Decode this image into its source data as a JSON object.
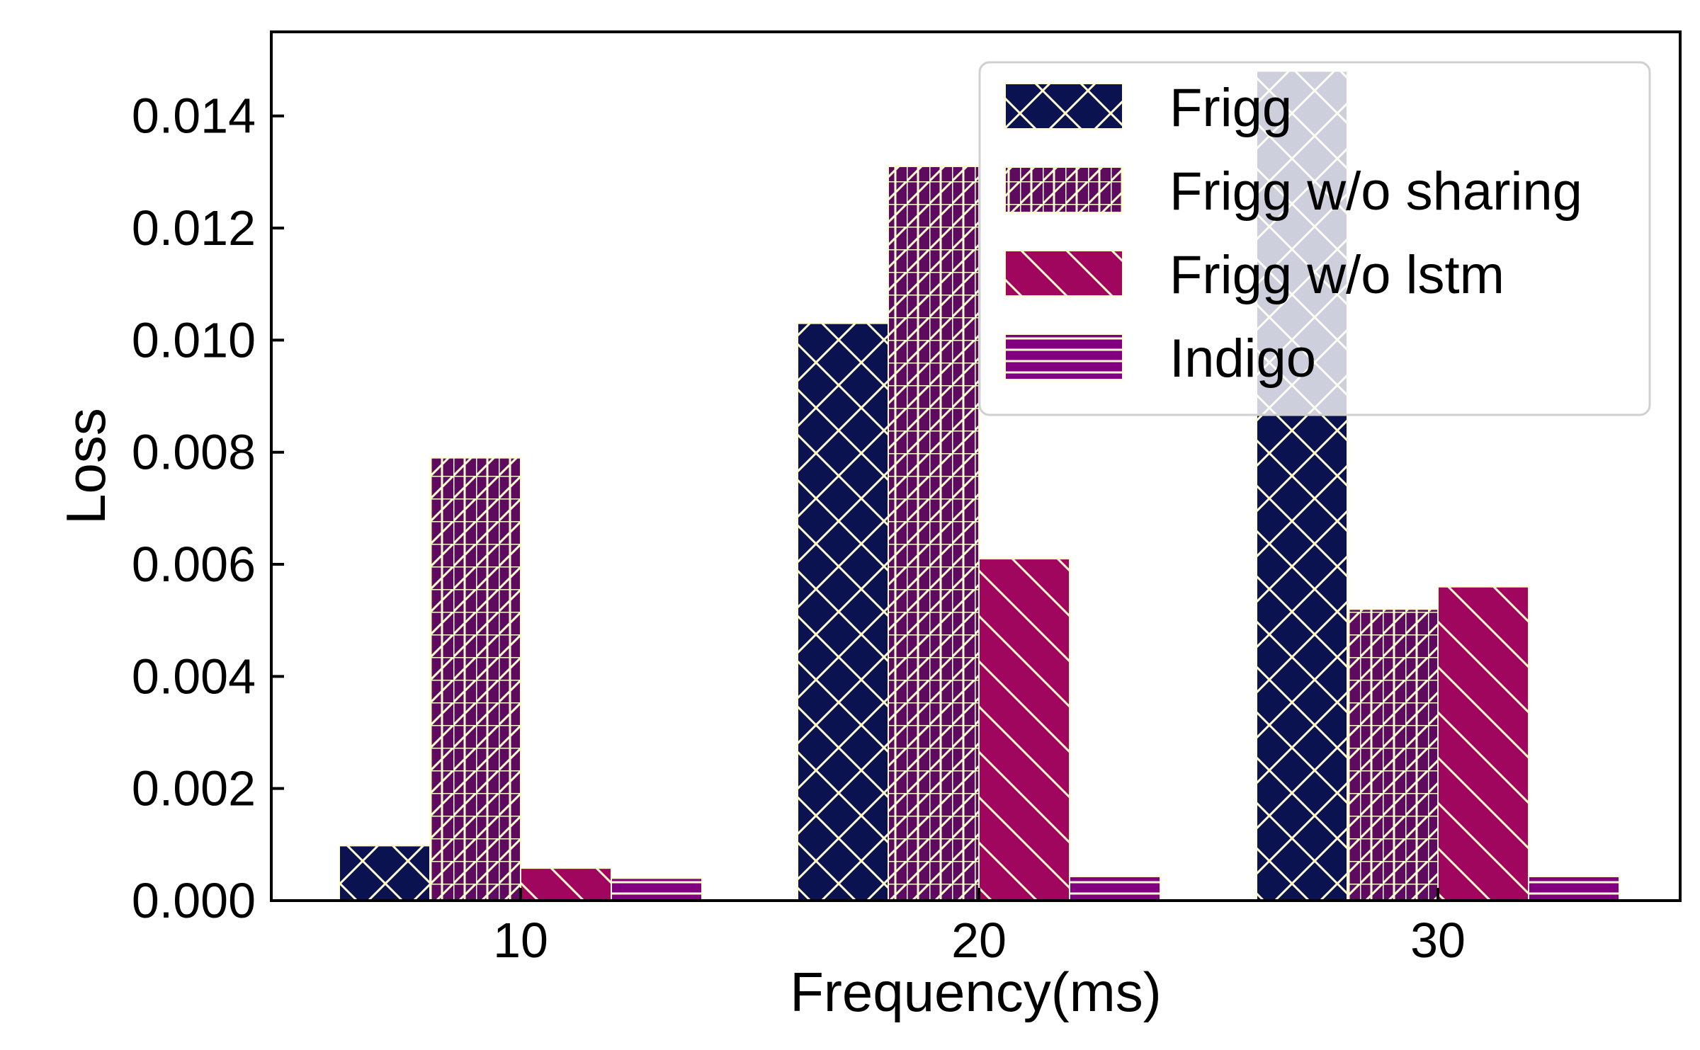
{
  "chart_data": {
    "type": "bar",
    "title": "",
    "xlabel": "Frequency(ms)",
    "ylabel": "Loss",
    "categories": [
      "10",
      "20",
      "30"
    ],
    "ylim": [
      0,
      0.0155
    ],
    "yticks": [
      "0.000",
      "0.002",
      "0.004",
      "0.006",
      "0.008",
      "0.010",
      "0.012",
      "0.014"
    ],
    "ytick_values": [
      0,
      0.002,
      0.004,
      0.006,
      0.008,
      0.01,
      0.012,
      0.014
    ],
    "grid": false,
    "legend_position": "top-right",
    "series": [
      {
        "name": "Frigg",
        "values": [
          0.00098,
          0.0103,
          0.0148
        ],
        "color": "#0a1250",
        "hatch": "crosshatch-diagonal"
      },
      {
        "name": "Frigg w/o sharing",
        "values": [
          0.0079,
          0.0131,
          0.0052
        ],
        "color": "#5e0a5e",
        "hatch": "grid-and-diagonal"
      },
      {
        "name": "Frigg w/o lstm",
        "values": [
          0.00058,
          0.0061,
          0.0056
        ],
        "color": "#a0065e",
        "hatch": "backslash"
      },
      {
        "name": "Indigo",
        "values": [
          0.0004,
          0.00043,
          0.00043
        ],
        "color": "#800080",
        "hatch": "horizontal"
      }
    ],
    "hatch_color": "#fffbd0"
  }
}
